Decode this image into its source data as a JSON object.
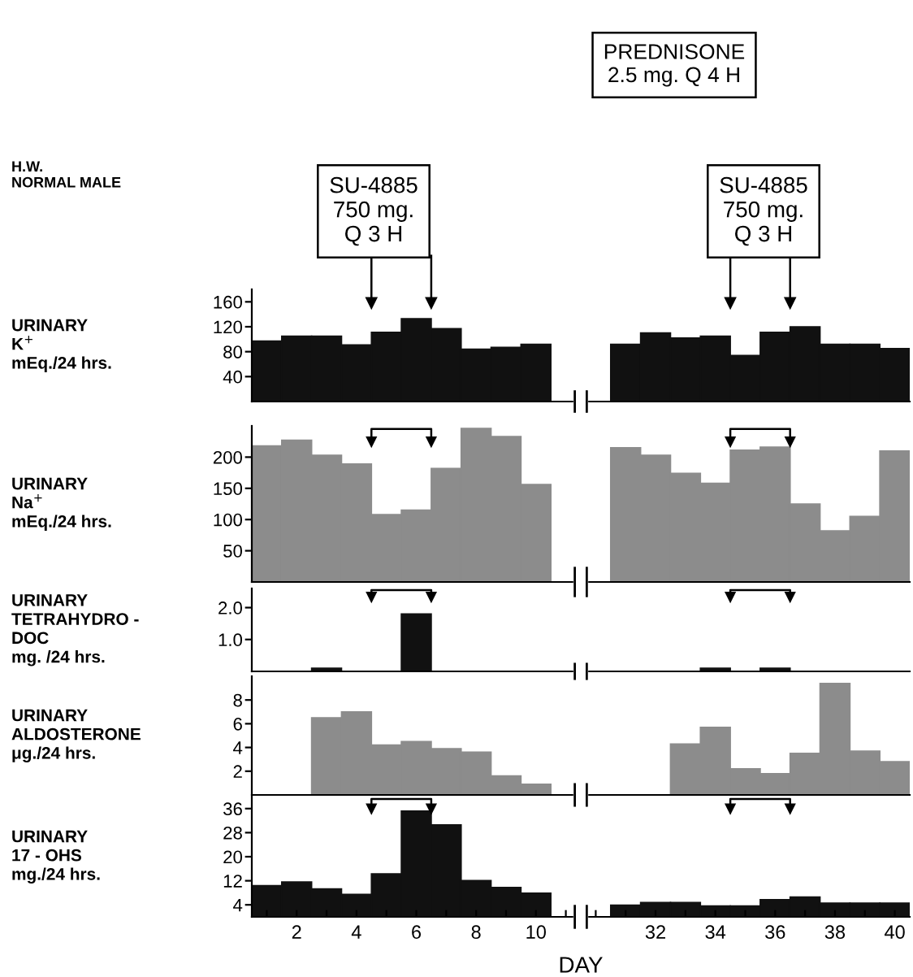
{
  "chart_data": [
    {
      "type": "bar",
      "annotations": [
        "H.W.\nNORMAL MALE",
        "PREDNISONE\n2.5 mg. Q 4 H",
        "SU-4885\n750 mg.\nQ 3 H",
        "SU-4885\n750 mg.\nQ 3 H"
      ],
      "ylabel": "URINARY\nK$^{+}$\nmEq./24 hrs.",
      "categories": [
        null,
        "2",
        null,
        "4",
        null,
        "6",
        null,
        "8",
        null,
        "10",
        null,
        null,
        null,
        "32",
        null,
        "34",
        null,
        "36",
        null,
        "38",
        null,
        "40"
      ],
      "values": [
        97,
        105,
        105,
        91,
        111,
        133,
        117,
        84,
        87,
        92,
        null,
        null,
        92,
        110,
        102,
        105,
        74,
        111,
        120,
        92,
        92,
        85
      ],
      "color": "#111111",
      "ylim": [
        0,
        180
      ],
      "yticks": [
        40,
        80,
        120,
        160
      ],
      "tick_labels": "y"
    },
    {
      "type": "bar",
      "ylabel": "URINARY\nNa$^{+}$\nmEq./24 hrs.",
      "categories": [
        null,
        "2",
        null,
        "4",
        null,
        "6",
        null,
        "8",
        null,
        "10",
        null,
        null,
        null,
        "32",
        null,
        "34",
        null,
        "36",
        null,
        "38",
        null,
        "40"
      ],
      "values": [
        218,
        227,
        203,
        189,
        108,
        115,
        182,
        246,
        233,
        156,
        null,
        null,
        215,
        203,
        174,
        158,
        211,
        216,
        125,
        82,
        105,
        210
      ],
      "color": "#8c8c8c",
      "ylim": [
        0,
        250
      ],
      "yticks": [
        50,
        100,
        150,
        200
      ],
      "tick_labels": "y"
    },
    {
      "type": "bar",
      "ylabel": "URINARY\nTETRAHYDRO -\nDOC\nmg. /24 hrs.",
      "categories": [
        null,
        "2",
        null,
        "4",
        null,
        "6",
        null,
        "8",
        null,
        "10",
        null,
        null,
        null,
        "32",
        null,
        "34",
        null,
        "36",
        null,
        "38",
        null,
        "40"
      ],
      "values": [
        0,
        0,
        0.1,
        0,
        0,
        1.8,
        0,
        0,
        0,
        0,
        null,
        null,
        0,
        0,
        0,
        0.1,
        0,
        0.1,
        0,
        0,
        0,
        0
      ],
      "color": "#111111",
      "ylim": [
        0,
        2.6
      ],
      "yticks": [
        {
          "value": 1,
          "label": "1.0"
        },
        {
          "value": 2,
          "label": "2.0"
        }
      ],
      "tick_labels": "y"
    },
    {
      "type": "bar",
      "ylabel": "URINARY\nALDOSTERONE\nμg./24 hrs.",
      "categories": [
        null,
        "2",
        null,
        "4",
        null,
        "6",
        null,
        "8",
        null,
        "10",
        null,
        null,
        null,
        "32",
        null,
        "34",
        null,
        "36",
        null,
        "38",
        null,
        "40"
      ],
      "values": [
        0,
        0,
        6.5,
        7.0,
        4.2,
        4.5,
        3.9,
        3.6,
        1.6,
        0.9,
        null,
        null,
        0,
        0,
        4.3,
        5.7,
        2.2,
        1.8,
        3.5,
        9.4,
        3.7,
        2.8
      ],
      "color": "#8c8c8c",
      "ylim": [
        0,
        10
      ],
      "yticks": [
        2,
        4,
        6,
        8
      ],
      "tick_labels": "y"
    },
    {
      "type": "bar",
      "ylabel": "URINARY\n17 - OHS\nmg./24 hrs.",
      "xlabel": "DAY",
      "categories": [
        null,
        "2",
        null,
        "4",
        null,
        "6",
        null,
        "8",
        null,
        "10",
        null,
        null,
        null,
        "32",
        null,
        "34",
        null,
        "36",
        null,
        "38",
        null,
        "40"
      ],
      "values": [
        10.4,
        11.6,
        9.3,
        7.5,
        14.3,
        35.2,
        30.6,
        12.1,
        9.8,
        7.9,
        null,
        null,
        3.9,
        4.8,
        4.8,
        3.6,
        3.6,
        5.7,
        6.6,
        4.6,
        4.6,
        4.6
      ],
      "color": "#111111",
      "ylim": [
        0,
        40
      ],
      "yticks": [
        4,
        12,
        20,
        28,
        36
      ]
    }
  ]
}
